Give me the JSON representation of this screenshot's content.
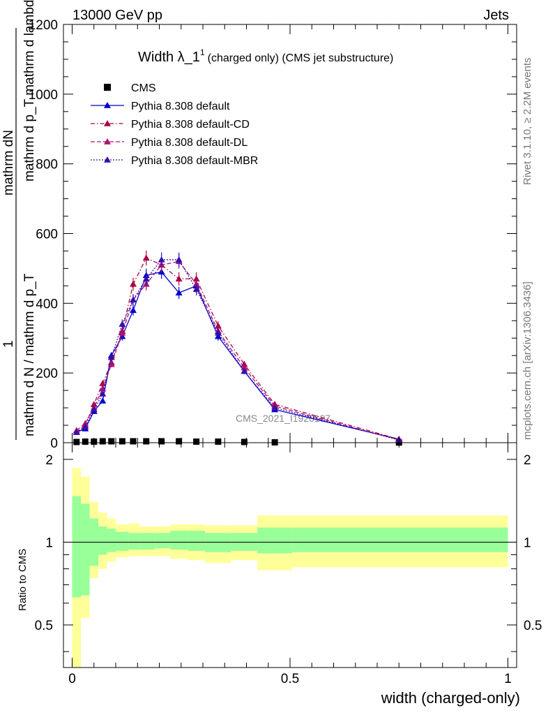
{
  "header": {
    "left": "13000 GeV pp",
    "right": "Jets"
  },
  "side_labels": {
    "rivet": "Rivet 3.1.10, ≥ 2.2M events",
    "mcplots": "mcplots.cern.ch [arXiv:1306.3436]"
  },
  "colors": {
    "cms": "#000000",
    "default": "#0000cc",
    "cd": "#aa0044",
    "dl": "#aa1177",
    "mbr": "#3311aa",
    "band_inner": "#99ff99",
    "band_outer": "#ffff99"
  },
  "chart_data": [
    {
      "type": "line",
      "title": "Width λ_1",
      "title_sup": "1",
      "subtitle": "(charged only) (CMS jet substructure)",
      "ylabel_top": "mathrm dN",
      "ylabel_top2": "mathrm d p_T mathrm d lambda",
      "ylabel_one": "1",
      "ylabel_bottom": "mathrm d N / mathrm d p_T",
      "watermark": "CMS_2021_I1920187",
      "xlim": [
        -0.02,
        1.02
      ],
      "ylim": [
        0,
        1200
      ],
      "yticks": [
        0,
        200,
        400,
        600,
        800,
        1000,
        1200
      ],
      "ytick_labels": [
        "0",
        "200",
        "400",
        "600",
        "800",
        "1000",
        "1200"
      ],
      "legend": [
        "CMS",
        "Pythia 8.308 default",
        "Pythia 8.308 default-CD",
        "Pythia 8.308 default-DL",
        "Pythia 8.308 default-MBR"
      ],
      "x": [
        0.01,
        0.03,
        0.05,
        0.07,
        0.09,
        0.115,
        0.14,
        0.17,
        0.205,
        0.245,
        0.285,
        0.335,
        0.395,
        0.465,
        0.75
      ],
      "series": [
        {
          "name": "CMS",
          "values": [
            2,
            3,
            3,
            4,
            4,
            4,
            4,
            4,
            4,
            4,
            3,
            3,
            2,
            1,
            0.5
          ]
        },
        {
          "name": "Pythia 8.308 default",
          "values": [
            30,
            40,
            90,
            120,
            250,
            305,
            380,
            480,
            490,
            430,
            450,
            305,
            205,
            95,
            10
          ]
        },
        {
          "name": "Pythia 8.308 default-CD",
          "values": [
            30,
            50,
            110,
            170,
            230,
            320,
            455,
            530,
            510,
            470,
            470,
            335,
            225,
            110,
            10
          ]
        },
        {
          "name": "Pythia 8.308 default-DL",
          "values": [
            35,
            55,
            100,
            155,
            225,
            315,
            410,
            455,
            510,
            520,
            455,
            320,
            215,
            105,
            8
          ]
        },
        {
          "name": "Pythia 8.308 default-MBR",
          "values": [
            30,
            45,
            95,
            140,
            245,
            340,
            410,
            470,
            525,
            525,
            440,
            315,
            205,
            100,
            8
          ]
        }
      ]
    },
    {
      "type": "area",
      "ylabel": "Ratio to CMS",
      "xlabel": "width (charged-only)",
      "xlim": [
        -0.02,
        1.02
      ],
      "ylim": [
        0.35,
        2.3
      ],
      "yticks": [
        0.5,
        1,
        2
      ],
      "ytick_labels": [
        "0.5",
        "1",
        "2"
      ],
      "xticks": [
        0,
        0.5,
        1
      ],
      "xtick_labels": [
        "0",
        "0.5",
        "1"
      ],
      "bin_edges": [
        0,
        0.02,
        0.04,
        0.06,
        0.08,
        0.1,
        0.13,
        0.155,
        0.19,
        0.225,
        0.265,
        0.305,
        0.365,
        0.425,
        0.505,
        1.0
      ],
      "inner_up": [
        1.47,
        1.38,
        1.22,
        1.14,
        1.12,
        1.09,
        1.08,
        1.08,
        1.08,
        1.1,
        1.1,
        1.08,
        1.08,
        1.13,
        1.13
      ],
      "inner_down": [
        0.63,
        0.64,
        0.82,
        0.9,
        0.92,
        0.93,
        0.94,
        0.94,
        0.95,
        0.94,
        0.93,
        0.92,
        0.93,
        0.91,
        0.92
      ],
      "outer_up": [
        1.86,
        1.73,
        1.4,
        1.28,
        1.22,
        1.16,
        1.17,
        1.14,
        1.14,
        1.16,
        1.16,
        1.15,
        1.15,
        1.25,
        1.25
      ],
      "outer_down": [
        0.3,
        0.53,
        0.74,
        0.8,
        0.85,
        0.88,
        0.89,
        0.89,
        0.89,
        0.87,
        0.86,
        0.84,
        0.86,
        0.79,
        0.81
      ]
    }
  ]
}
